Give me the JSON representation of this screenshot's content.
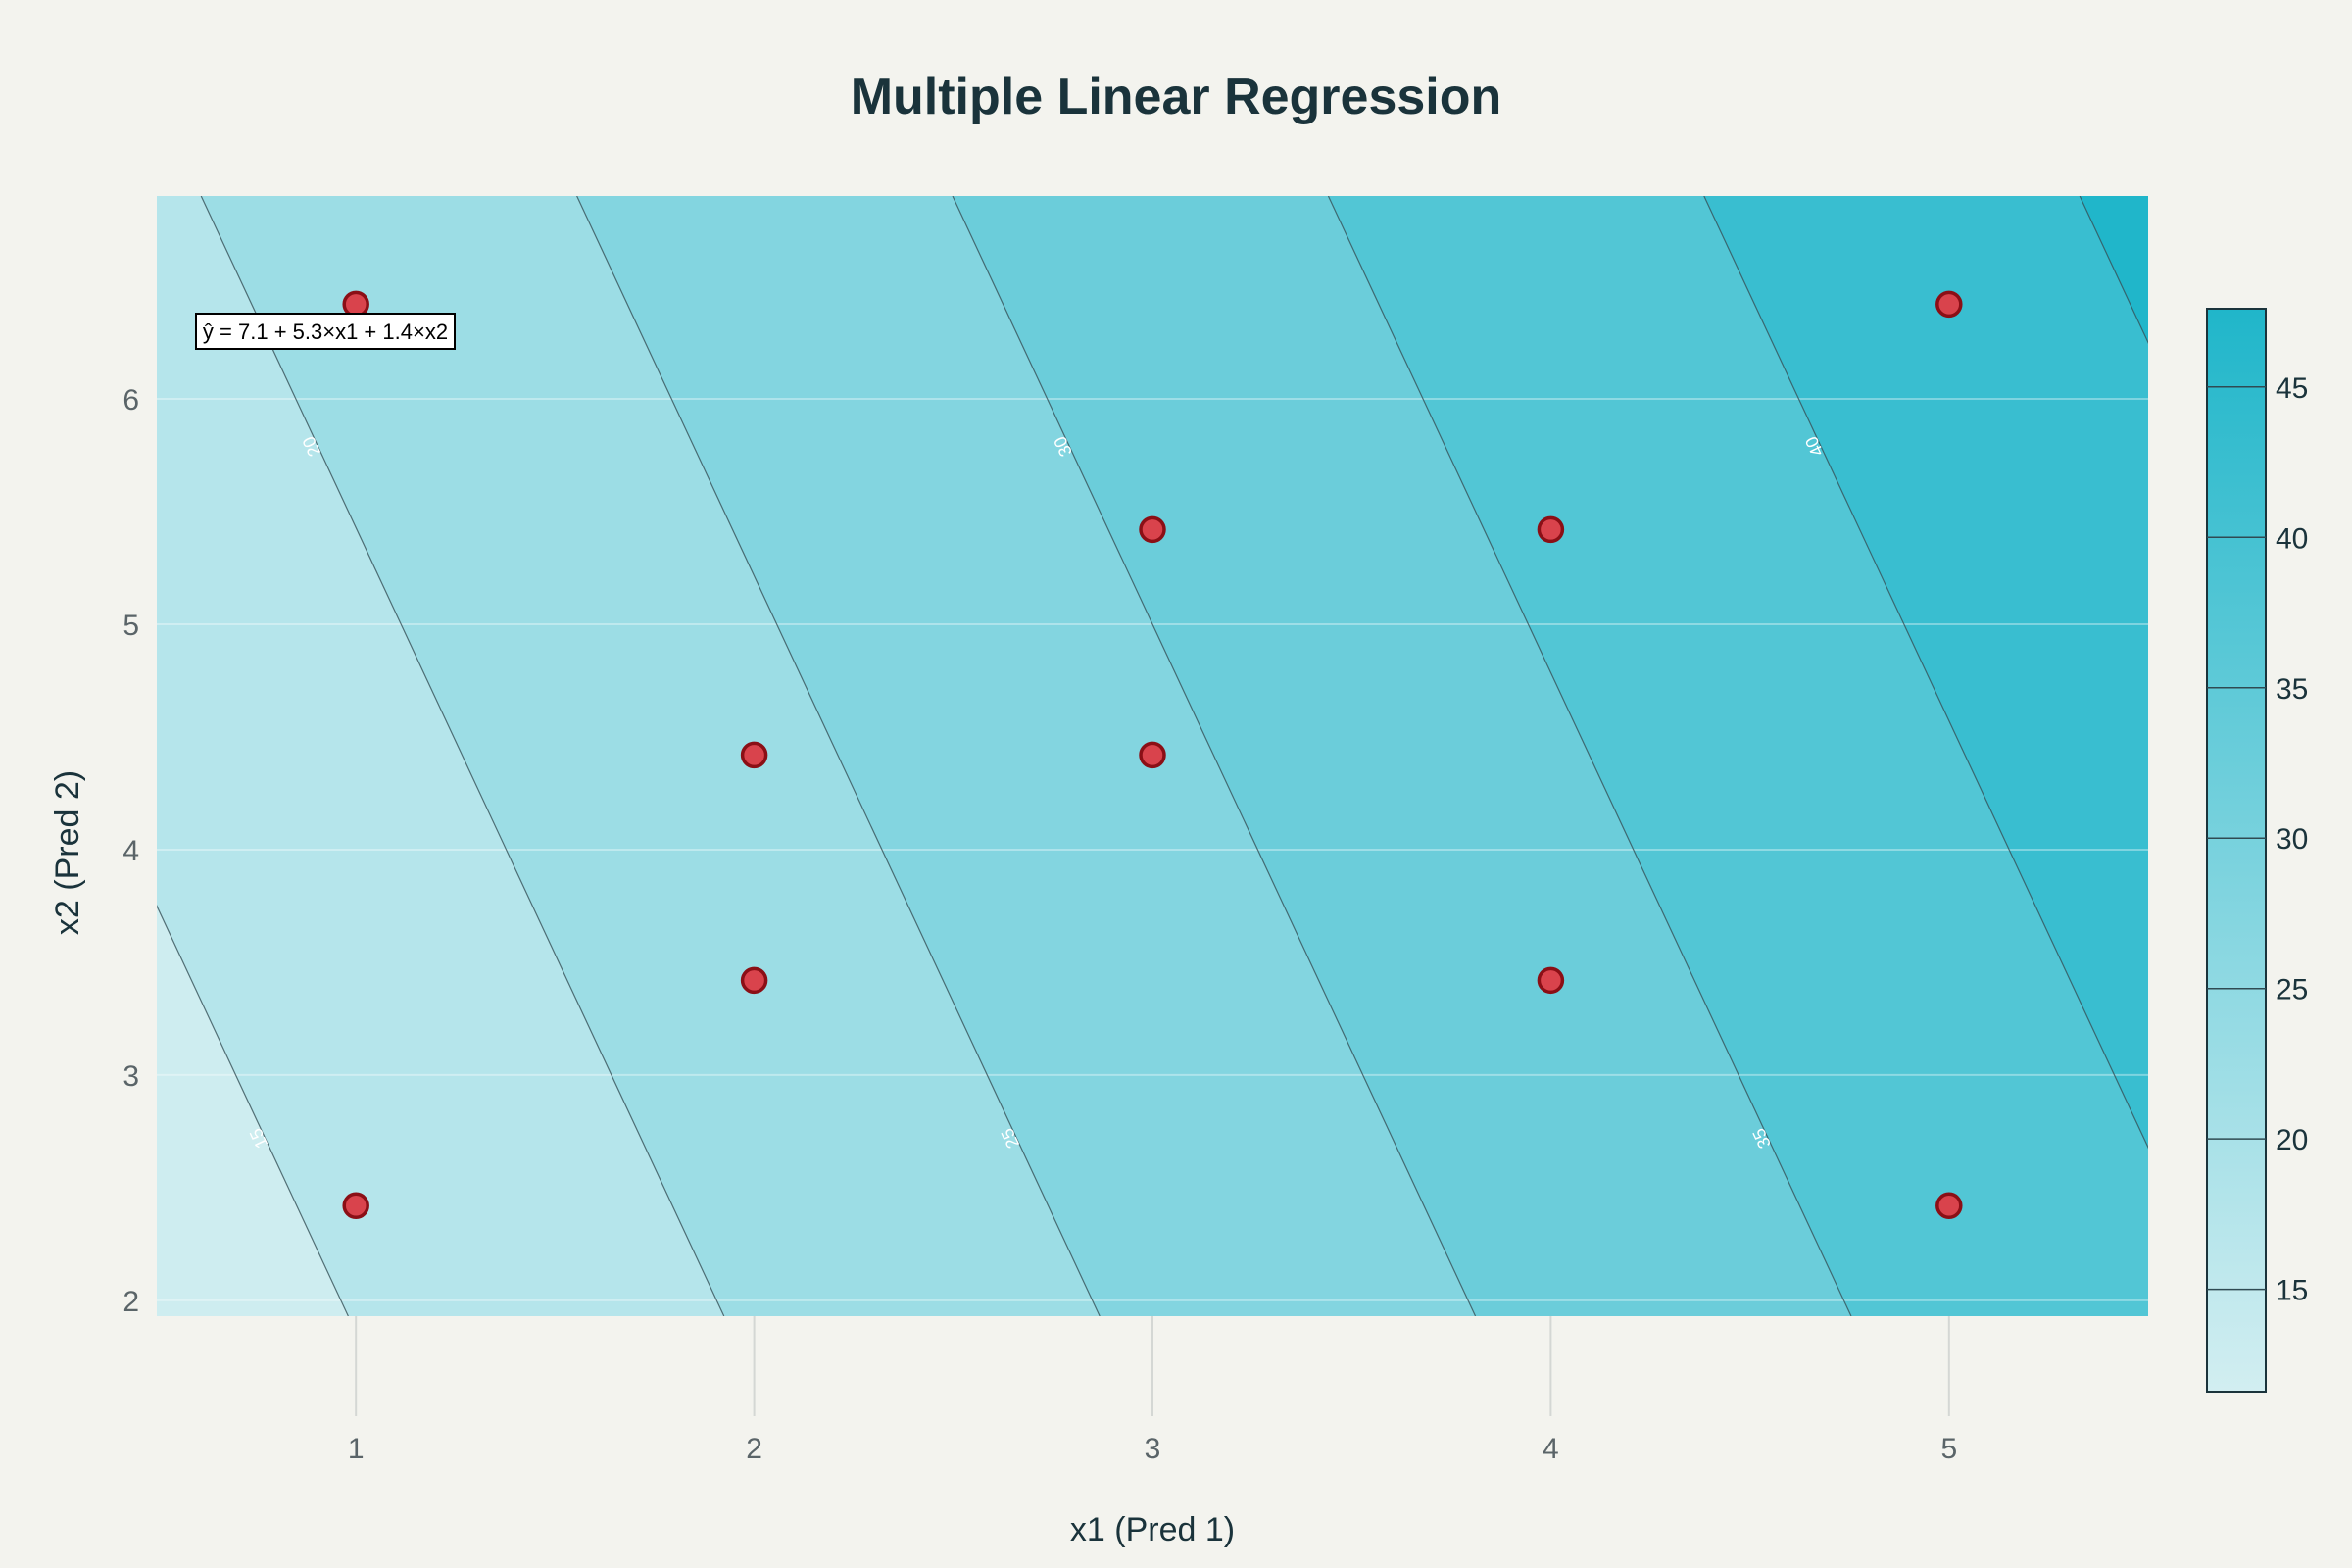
{
  "chart_data": {
    "type": "contour",
    "title": "Multiple Linear Regression",
    "xlabel": "x1 (Pred 1)",
    "ylabel": "x2 (Pred 2)",
    "xlim": [
      0.5,
      5.5
    ],
    "ylim": [
      1.93,
      6.9
    ],
    "x_ticks": [
      1,
      2,
      3,
      4,
      5
    ],
    "y_ticks": [
      2,
      3,
      4,
      5,
      6
    ],
    "model": {
      "intercept": 7.1,
      "coef_x1": 5.3,
      "coef_x2": 1.4
    },
    "equation_label": "ŷ = 7.1 + 5.3×x1 + 1.4×x2",
    "contour_levels": [
      15,
      20,
      25,
      30,
      35,
      40,
      45
    ],
    "contour_labels": [
      {
        "value": 15,
        "text": "15"
      },
      {
        "value": 20,
        "text": "20"
      },
      {
        "value": 25,
        "text": "25"
      },
      {
        "value": 30,
        "text": "30"
      },
      {
        "value": 35,
        "text": "35"
      },
      {
        "value": 40,
        "text": "40"
      }
    ],
    "colorbar": {
      "range": [
        11.6,
        47.6
      ],
      "ticks": [
        15,
        20,
        25,
        30,
        35,
        40,
        45
      ],
      "color_low": "#d2eef1",
      "color_high": "#20b6ca"
    },
    "points": {
      "color": "#d9434c",
      "edge_color": "#8b0f16",
      "x": [
        1,
        1,
        2,
        2,
        3,
        3,
        4,
        4,
        5,
        5
      ],
      "y": [
        2.42,
        6.42,
        3.42,
        4.42,
        4.42,
        5.42,
        3.42,
        5.42,
        2.42,
        6.42
      ]
    }
  }
}
